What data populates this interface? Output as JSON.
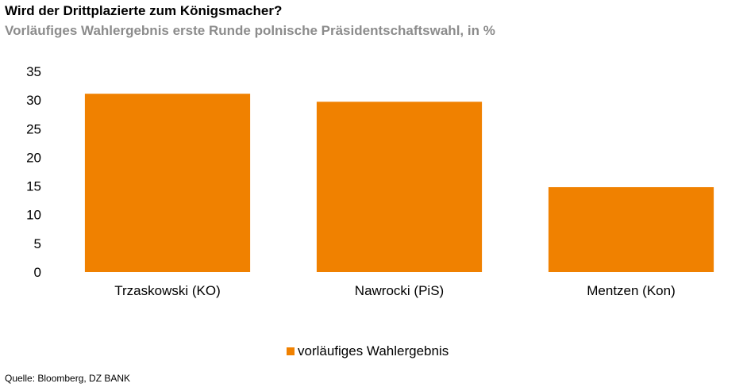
{
  "title": "Wird der Drittplazierte zum Königsmacher?",
  "subtitle": "Vorläufiges Wahlergebnis erste Runde polnische Präsidentschaftswahl, in %",
  "source": "Quelle: Bloomberg, DZ BANK",
  "chart_data": {
    "type": "bar",
    "categories": [
      "Trzaskowski (KO)",
      "Nawrocki (PiS)",
      "Mentzen (Kon)"
    ],
    "series": [
      {
        "name": "vorläufiges Wahlergebnis",
        "values": [
          31.1,
          29.7,
          14.8
        ],
        "color": "#F08100"
      }
    ],
    "ylim": [
      0,
      35
    ],
    "yticks": [
      0,
      5,
      10,
      15,
      20,
      25,
      30,
      35
    ],
    "grid": false,
    "legend_position": "bottom"
  }
}
